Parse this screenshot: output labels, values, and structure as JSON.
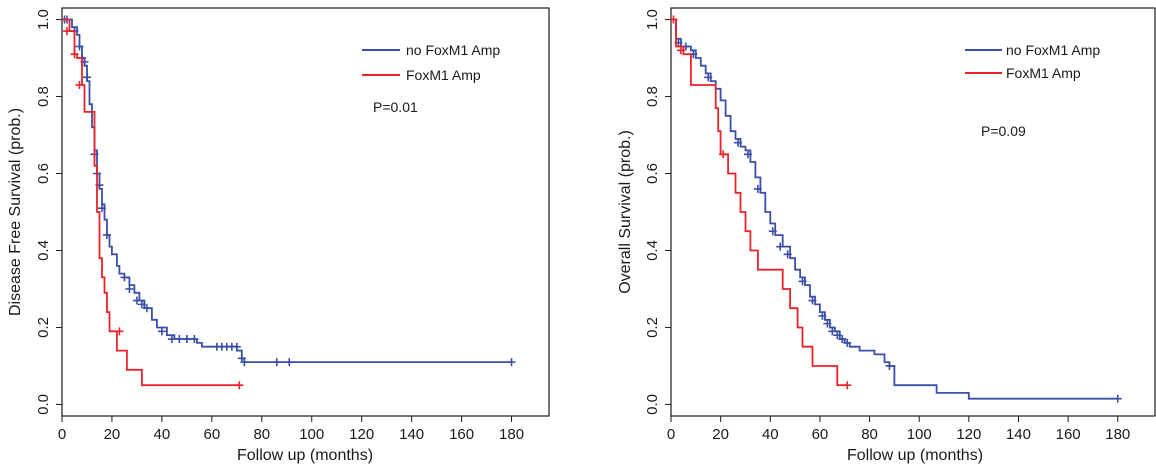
{
  "colors": {
    "group_no_amp": "#3b4fa8",
    "group_amp": "#e8232a",
    "axis": "#1a1a1a"
  },
  "chart_data": [
    {
      "type": "line",
      "subtype": "kaplan-meier",
      "title": "",
      "xlabel": "Follow up (months)",
      "ylabel": "Disease Free Survival (prob.)",
      "xlim": [
        0,
        195
      ],
      "ylim": [
        -0.03,
        1.03
      ],
      "xticks": [
        "0",
        "20",
        "40",
        "60",
        "80",
        "100",
        "120",
        "140",
        "160",
        "180"
      ],
      "yticks": [
        "0.0",
        "0.2",
        "0.4",
        "0.6",
        "0.8",
        "1.0"
      ],
      "legend_position": "top-right",
      "annotation": "P=0.01",
      "series": [
        {
          "name": "no FoxM1 Amp",
          "points": [
            [
              0,
              1.0
            ],
            [
              3,
              1.0
            ],
            [
              4,
              0.98
            ],
            [
              6,
              0.96
            ],
            [
              7,
              0.93
            ],
            [
              8,
              0.9
            ],
            [
              9,
              0.88
            ],
            [
              10,
              0.84
            ],
            [
              11,
              0.78
            ],
            [
              12,
              0.72
            ],
            [
              13,
              0.66
            ],
            [
              14,
              0.6
            ],
            [
              15,
              0.56
            ],
            [
              16,
              0.52
            ],
            [
              17,
              0.48
            ],
            [
              18,
              0.44
            ],
            [
              19,
              0.41
            ],
            [
              20,
              0.39
            ],
            [
              22,
              0.36
            ],
            [
              23,
              0.34
            ],
            [
              25,
              0.33
            ],
            [
              27,
              0.31
            ],
            [
              29,
              0.29
            ],
            [
              31,
              0.27
            ],
            [
              33,
              0.25
            ],
            [
              36,
              0.22
            ],
            [
              38,
              0.2
            ],
            [
              42,
              0.18
            ],
            [
              45,
              0.17
            ],
            [
              52,
              0.17
            ],
            [
              54,
              0.16
            ],
            [
              56,
              0.15
            ],
            [
              70,
              0.14
            ],
            [
              72,
              0.12
            ],
            [
              73,
              0.11
            ],
            [
              180,
              0.11
            ]
          ],
          "censors": [
            [
              1,
              1.0
            ],
            [
              2,
              1.0
            ],
            [
              5,
              0.97
            ],
            [
              7,
              0.93
            ],
            [
              8,
              0.9
            ],
            [
              9,
              0.89
            ],
            [
              10,
              0.85
            ],
            [
              13,
              0.65
            ],
            [
              14,
              0.6
            ],
            [
              15,
              0.57
            ],
            [
              16,
              0.51
            ],
            [
              18,
              0.44
            ],
            [
              25,
              0.33
            ],
            [
              27,
              0.3
            ],
            [
              30,
              0.27
            ],
            [
              32,
              0.26
            ],
            [
              34,
              0.25
            ],
            [
              40,
              0.19
            ],
            [
              44,
              0.17
            ],
            [
              47,
              0.17
            ],
            [
              50,
              0.17
            ],
            [
              53,
              0.17
            ],
            [
              62,
              0.15
            ],
            [
              64,
              0.15
            ],
            [
              66,
              0.15
            ],
            [
              68,
              0.15
            ],
            [
              70,
              0.15
            ],
            [
              72,
              0.12
            ],
            [
              73,
              0.11
            ],
            [
              86,
              0.11
            ],
            [
              91,
              0.11
            ],
            [
              180,
              0.11
            ]
          ]
        },
        {
          "name": "FoxM1 Amp",
          "points": [
            [
              0,
              1.0
            ],
            [
              2,
              1.0
            ],
            [
              3,
              0.97
            ],
            [
              5,
              0.91
            ],
            [
              6,
              0.9
            ],
            [
              8,
              0.83
            ],
            [
              9,
              0.76
            ],
            [
              12,
              0.76
            ],
            [
              13,
              0.62
            ],
            [
              14,
              0.5
            ],
            [
              15,
              0.38
            ],
            [
              16,
              0.33
            ],
            [
              17,
              0.29
            ],
            [
              18,
              0.24
            ],
            [
              19,
              0.19
            ],
            [
              22,
              0.14
            ],
            [
              26,
              0.09
            ],
            [
              32,
              0.05
            ],
            [
              71,
              0.05
            ]
          ],
          "censors": [
            [
              2,
              0.97
            ],
            [
              5,
              0.91
            ],
            [
              7,
              0.83
            ],
            [
              23,
              0.19
            ],
            [
              71,
              0.05
            ]
          ]
        }
      ]
    },
    {
      "type": "line",
      "subtype": "kaplan-meier",
      "title": "",
      "xlabel": "Follow up (months)",
      "ylabel": "Overall Survival (prob.)",
      "xlim": [
        0,
        195
      ],
      "ylim": [
        -0.03,
        1.03
      ],
      "xticks": [
        "0",
        "20",
        "40",
        "60",
        "80",
        "100",
        "120",
        "140",
        "160",
        "180"
      ],
      "yticks": [
        "0.0",
        "0.2",
        "0.4",
        "0.6",
        "0.8",
        "1.0"
      ],
      "legend_position": "top-right",
      "annotation": "P=0.09",
      "series": [
        {
          "name": "no FoxM1 Amp",
          "points": [
            [
              0,
              1.0
            ],
            [
              2,
              0.95
            ],
            [
              4,
              0.93
            ],
            [
              8,
              0.92
            ],
            [
              10,
              0.9
            ],
            [
              12,
              0.88
            ],
            [
              14,
              0.86
            ],
            [
              16,
              0.84
            ],
            [
              18,
              0.82
            ],
            [
              20,
              0.79
            ],
            [
              22,
              0.75
            ],
            [
              24,
              0.71
            ],
            [
              26,
              0.69
            ],
            [
              28,
              0.67
            ],
            [
              30,
              0.66
            ],
            [
              32,
              0.63
            ],
            [
              34,
              0.59
            ],
            [
              36,
              0.55
            ],
            [
              38,
              0.5
            ],
            [
              40,
              0.47
            ],
            [
              42,
              0.44
            ],
            [
              45,
              0.41
            ],
            [
              48,
              0.38
            ],
            [
              50,
              0.35
            ],
            [
              52,
              0.33
            ],
            [
              54,
              0.31
            ],
            [
              56,
              0.28
            ],
            [
              58,
              0.26
            ],
            [
              60,
              0.24
            ],
            [
              62,
              0.22
            ],
            [
              64,
              0.2
            ],
            [
              66,
              0.19
            ],
            [
              68,
              0.17
            ],
            [
              70,
              0.16
            ],
            [
              72,
              0.15
            ],
            [
              76,
              0.14
            ],
            [
              82,
              0.13
            ],
            [
              86,
              0.11
            ],
            [
              88,
              0.1
            ],
            [
              90,
              0.05
            ],
            [
              106,
              0.05
            ],
            [
              107,
              0.03
            ],
            [
              119,
              0.03
            ],
            [
              120,
              0.015
            ],
            [
              180,
              0.015
            ]
          ],
          "censors": [
            [
              3,
              0.94
            ],
            [
              6,
              0.93
            ],
            [
              9,
              0.91
            ],
            [
              15,
              0.85
            ],
            [
              27,
              0.68
            ],
            [
              31,
              0.65
            ],
            [
              35,
              0.56
            ],
            [
              41,
              0.45
            ],
            [
              44,
              0.41
            ],
            [
              47,
              0.39
            ],
            [
              53,
              0.32
            ],
            [
              57,
              0.27
            ],
            [
              61,
              0.23
            ],
            [
              63,
              0.21
            ],
            [
              65,
              0.19
            ],
            [
              67,
              0.18
            ],
            [
              69,
              0.17
            ],
            [
              71,
              0.16
            ],
            [
              88,
              0.1
            ],
            [
              180,
              0.015
            ]
          ]
        },
        {
          "name": "FoxM1 Amp",
          "points": [
            [
              0,
              1.0
            ],
            [
              2,
              0.93
            ],
            [
              5,
              0.91
            ],
            [
              8,
              0.83
            ],
            [
              16,
              0.83
            ],
            [
              18,
              0.77
            ],
            [
              19,
              0.71
            ],
            [
              20,
              0.65
            ],
            [
              23,
              0.6
            ],
            [
              26,
              0.55
            ],
            [
              28,
              0.5
            ],
            [
              30,
              0.45
            ],
            [
              32,
              0.4
            ],
            [
              35,
              0.35
            ],
            [
              45,
              0.3
            ],
            [
              48,
              0.25
            ],
            [
              51,
              0.2
            ],
            [
              53,
              0.15
            ],
            [
              57,
              0.1
            ],
            [
              67,
              0.05
            ],
            [
              71,
              0.05
            ]
          ],
          "censors": [
            [
              1,
              1.0
            ],
            [
              4,
              0.92
            ],
            [
              21,
              0.65
            ],
            [
              71,
              0.05
            ]
          ]
        }
      ]
    }
  ]
}
